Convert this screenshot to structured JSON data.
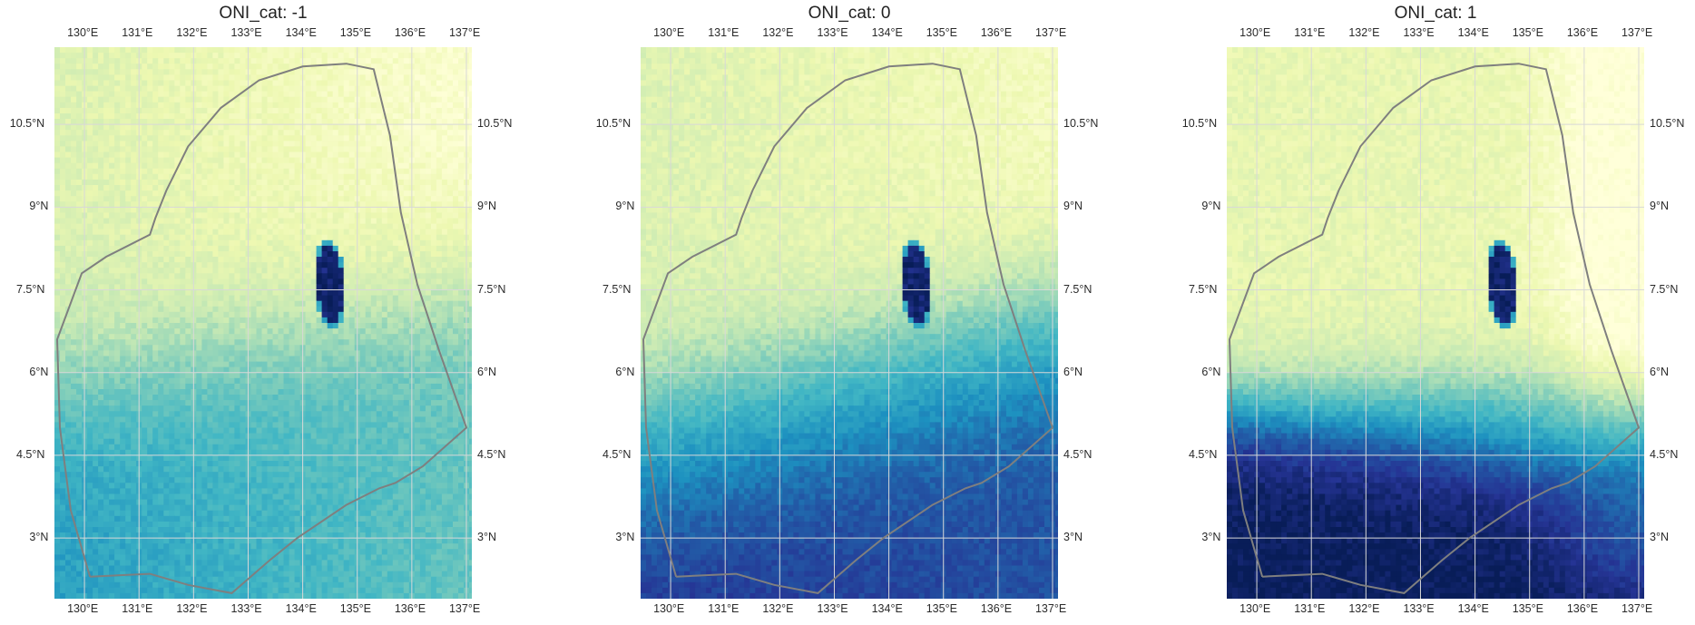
{
  "panels": [
    {
      "title": "ONI_cat: -1",
      "variant": -1
    },
    {
      "title": "ONI_cat: 0",
      "variant": 0
    },
    {
      "title": "ONI_cat: 1",
      "variant": 1
    }
  ],
  "lon_ticks": [
    "130°E",
    "131°E",
    "132°E",
    "133°E",
    "134°E",
    "135°E",
    "136°E",
    "137°E"
  ],
  "lat_ticks": [
    "10.5°N",
    "9°N",
    "7.5°N",
    "6°N",
    "4.5°N",
    "3°N"
  ],
  "colors": {
    "boundary": "#7f7f7f",
    "gridline": "#d8d8d8",
    "colormap": "YlGnBu"
  }
}
